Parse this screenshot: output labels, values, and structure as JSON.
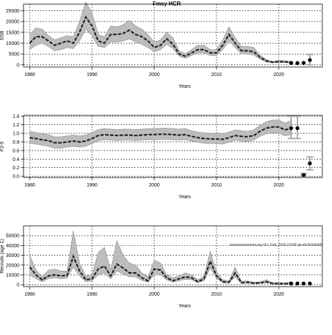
{
  "figure": {
    "title": "Fmsy HCR",
    "watermark": "stockassessment.org Oct_Feb_2025-11558 git:e9c5e9d5d0b"
  },
  "chart_data": [
    {
      "type": "line",
      "ylabel": "SSB",
      "xlabel": "Years",
      "xlim": [
        1979,
        2027
      ],
      "ylim": [
        -1000,
        28000
      ],
      "xticks": [
        1980,
        1990,
        2000,
        2010,
        2020
      ],
      "yticks": [
        0,
        5000,
        10000,
        15000,
        20000,
        25000
      ],
      "ytick_labels": [
        "0",
        "5000",
        "10000",
        "15000",
        "20000",
        "25000"
      ],
      "grid": true,
      "x": [
        1980,
        1981,
        1982,
        1983,
        1984,
        1985,
        1986,
        1987,
        1988,
        1989,
        1990,
        1991,
        1992,
        1993,
        1994,
        1995,
        1996,
        1997,
        1998,
        1999,
        2000,
        2001,
        2002,
        2003,
        2004,
        2005,
        2006,
        2007,
        2008,
        2009,
        2010,
        2011,
        2012,
        2013,
        2014,
        2015,
        2016,
        2017,
        2018,
        2019,
        2020,
        2021,
        2022
      ],
      "series": [
        {
          "values": [
            10000,
            13000,
            13000,
            11000,
            9000,
            10000,
            11000,
            10000,
            15000,
            22000,
            18000,
            11000,
            10000,
            14000,
            14000,
            14500,
            16000,
            14000,
            13000,
            11000,
            8000,
            9000,
            12000,
            9500,
            5000,
            4000,
            5500,
            7000,
            7000,
            5500,
            5500,
            9000,
            14000,
            10000,
            6500,
            6500,
            6000,
            3500,
            1800,
            1200,
            1500,
            1400,
            1100
          ],
          "lower": [
            7000,
            9000,
            10000,
            8500,
            6500,
            7000,
            8000,
            7500,
            11000,
            16500,
            13500,
            8500,
            8000,
            10500,
            10500,
            11000,
            12000,
            10500,
            9500,
            8000,
            6000,
            7000,
            9500,
            7500,
            4000,
            3000,
            4300,
            5500,
            5500,
            4300,
            4300,
            7000,
            11000,
            8000,
            5000,
            5000,
            4500,
            2600,
            1300,
            900,
            1100,
            1000,
            800
          ],
          "upper": [
            14000,
            17000,
            16500,
            13500,
            11500,
            12500,
            13500,
            13000,
            20000,
            29000,
            24000,
            14000,
            13000,
            18000,
            17500,
            18500,
            20500,
            18000,
            16500,
            14000,
            10500,
            11500,
            15000,
            12500,
            6500,
            5200,
            7000,
            9000,
            9000,
            7000,
            7000,
            11500,
            17500,
            12500,
            8500,
            8500,
            8000,
            4500,
            2400,
            1600,
            2000,
            1900,
            1500
          ]
        }
      ],
      "forecast": {
        "x": [
          2022,
          2023,
          2024,
          2025
        ],
        "values": [
          900,
          800,
          900,
          2200
        ],
        "lower": [
          null,
          null,
          null,
          0
        ],
        "upper": [
          null,
          null,
          null,
          4800
        ]
      }
    },
    {
      "type": "line",
      "ylabel": "F2-5",
      "xlabel": "Years",
      "xlim": [
        1979,
        2027
      ],
      "ylim": [
        -0.03,
        1.42
      ],
      "xticks": [
        1980,
        1990,
        2000,
        2010,
        2020
      ],
      "yticks": [
        0,
        0.2,
        0.4,
        0.6,
        0.8,
        1.0,
        1.2,
        1.4
      ],
      "ytick_labels": [
        "0.0",
        "0.2",
        "0.4",
        "0.6",
        "0.8",
        "1.0",
        "1.2",
        "1.4"
      ],
      "grid": true,
      "x": [
        1980,
        1981,
        1982,
        1983,
        1984,
        1985,
        1986,
        1987,
        1988,
        1989,
        1990,
        1991,
        1992,
        1993,
        1994,
        1995,
        1996,
        1997,
        1998,
        1999,
        2000,
        2001,
        2002,
        2003,
        2004,
        2005,
        2006,
        2007,
        2008,
        2009,
        2010,
        2011,
        2012,
        2013,
        2014,
        2015,
        2016,
        2017,
        2018,
        2019,
        2020,
        2021,
        2022
      ],
      "series": [
        {
          "values": [
            0.9,
            0.88,
            0.85,
            0.83,
            0.78,
            0.78,
            0.8,
            0.82,
            0.8,
            0.82,
            0.88,
            0.95,
            0.97,
            0.96,
            0.95,
            0.96,
            0.96,
            0.95,
            0.96,
            0.97,
            0.97,
            0.98,
            0.98,
            0.97,
            0.96,
            0.97,
            0.93,
            0.9,
            0.88,
            0.87,
            0.87,
            0.86,
            0.9,
            0.95,
            0.93,
            0.92,
            0.95,
            1.05,
            1.12,
            1.15,
            1.15,
            1.08,
            1.12
          ],
          "lower": [
            0.77,
            0.75,
            0.72,
            0.7,
            0.65,
            0.65,
            0.68,
            0.7,
            0.68,
            0.7,
            0.76,
            0.83,
            0.85,
            0.84,
            0.83,
            0.84,
            0.84,
            0.83,
            0.84,
            0.85,
            0.85,
            0.86,
            0.86,
            0.85,
            0.84,
            0.85,
            0.82,
            0.79,
            0.77,
            0.76,
            0.76,
            0.75,
            0.79,
            0.84,
            0.82,
            0.81,
            0.84,
            0.93,
            0.99,
            1.01,
            1.01,
            0.94,
            0.97
          ],
          "upper": [
            1.05,
            1.02,
            0.99,
            0.97,
            0.92,
            0.92,
            0.94,
            0.96,
            0.94,
            0.96,
            1.02,
            1.09,
            1.11,
            1.1,
            1.09,
            1.1,
            1.1,
            1.09,
            1.1,
            1.11,
            1.11,
            1.12,
            1.12,
            1.11,
            1.1,
            1.11,
            1.06,
            1.03,
            1.01,
            1.0,
            1.0,
            0.99,
            1.03,
            1.08,
            1.06,
            1.05,
            1.08,
            1.19,
            1.27,
            1.31,
            1.31,
            1.24,
            1.3
          ]
        }
      ],
      "forecast": {
        "x": [
          2022,
          2023,
          2024,
          2025
        ],
        "values": [
          1.12,
          1.12,
          0.03,
          0.3
        ],
        "lower": [
          0.88,
          0.88,
          0.0,
          0.15
        ],
        "upper": [
          1.4,
          1.4,
          0.06,
          0.45
        ]
      }
    },
    {
      "type": "line",
      "ylabel": "Recruits (age 1)",
      "xlabel": "Years",
      "xlim": [
        1979,
        2027
      ],
      "ylim": [
        -2000,
        60000
      ],
      "xticks": [
        1980,
        1990,
        2000,
        2010,
        2020
      ],
      "yticks": [
        0,
        10000,
        20000,
        30000,
        40000,
        50000
      ],
      "ytick_labels": [
        "0",
        "10000",
        "20000",
        "30000",
        "40000",
        "50000"
      ],
      "grid": true,
      "x": [
        1980,
        1981,
        1982,
        1983,
        1984,
        1985,
        1986,
        1987,
        1988,
        1989,
        1990,
        1991,
        1992,
        1993,
        1994,
        1995,
        1996,
        1997,
        1998,
        1999,
        2000,
        2001,
        2002,
        2003,
        2004,
        2005,
        2006,
        2007,
        2008,
        2009,
        2010,
        2011,
        2012,
        2013,
        2014,
        2015,
        2016,
        2017,
        2018,
        2019,
        2020,
        2021,
        2022
      ],
      "series": [
        {
          "values": [
            18000,
            10000,
            5000,
            9000,
            10000,
            9000,
            9500,
            29000,
            14000,
            5000,
            6000,
            16000,
            19000,
            9000,
            21000,
            17000,
            12000,
            12000,
            7000,
            4000,
            16000,
            15000,
            7000,
            4000,
            6000,
            8000,
            7000,
            3000,
            6000,
            24000,
            9000,
            3000,
            2500,
            12000,
            2000,
            2500,
            1500,
            1800,
            3000,
            1200,
            1000,
            1000,
            1200
          ],
          "lower": [
            10000,
            6000,
            3000,
            6000,
            7000,
            6000,
            6500,
            18000,
            9000,
            3000,
            4000,
            10000,
            12000,
            6000,
            14000,
            11000,
            8000,
            8000,
            4500,
            2500,
            10000,
            10000,
            5000,
            2500,
            4000,
            5500,
            5000,
            2000,
            4000,
            17000,
            6500,
            2000,
            1500,
            8000,
            1300,
            1600,
            900,
            1100,
            1900,
            700,
            500,
            500,
            600
          ],
          "upper": [
            30000,
            15000,
            8000,
            15000,
            16000,
            14000,
            14000,
            55000,
            22000,
            9000,
            10000,
            33000,
            38000,
            15000,
            45000,
            30000,
            22000,
            20000,
            12000,
            8000,
            25000,
            22000,
            10000,
            7000,
            9000,
            12000,
            10000,
            5000,
            9000,
            34000,
            13000,
            5000,
            4000,
            18000,
            3500,
            4000,
            2500,
            3000,
            5000,
            2200,
            2000,
            2000,
            2500
          ]
        }
      ],
      "forecast": {
        "x": [
          2022,
          2023,
          2024,
          2025
        ],
        "values": [
          1200,
          1200,
          1200,
          1200
        ],
        "lower": [
          null,
          null,
          null,
          null
        ],
        "upper": [
          null,
          null,
          null,
          null
        ]
      }
    }
  ]
}
